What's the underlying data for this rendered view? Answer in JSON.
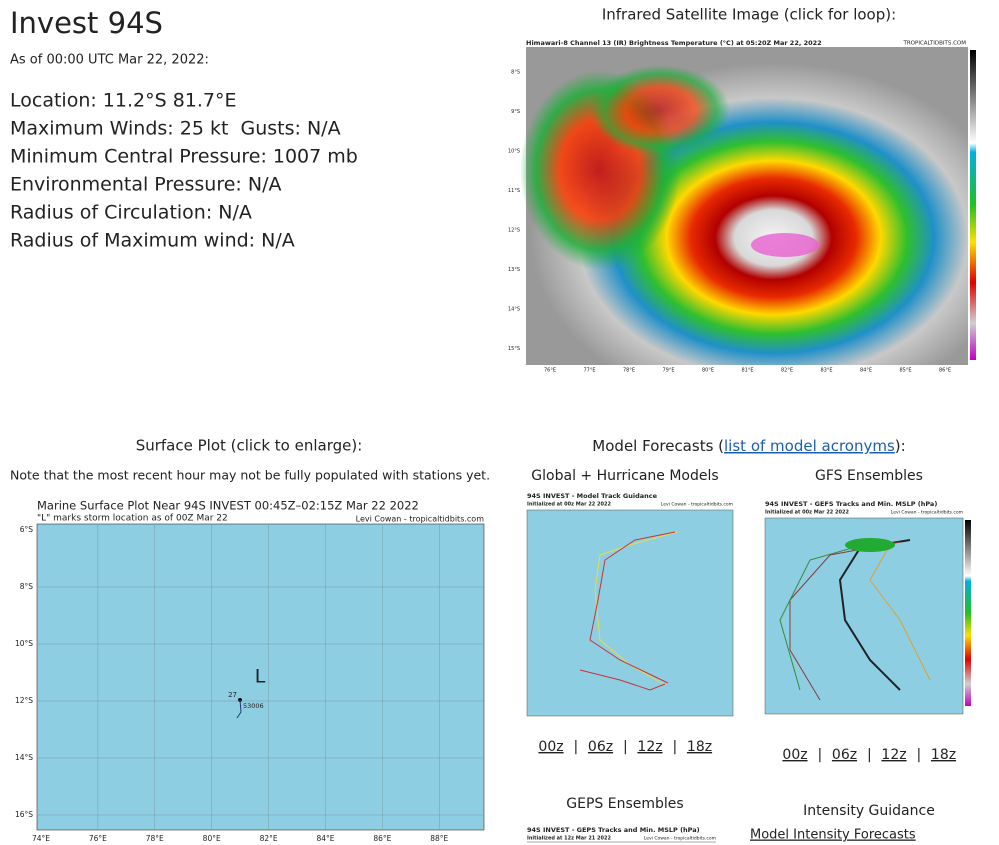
{
  "header": {
    "title": "Invest 94S",
    "as_of": "As of 00:00 UTC Mar 22, 2022:"
  },
  "storm_info": [
    "Location: 11.2°S 81.7°E",
    "Maximum Winds: 25 kt  Gusts: N/A",
    "Minimum Central Pressure: 1007 mb",
    "Environmental Pressure: N/A",
    "Radius of Circulation: N/A",
    "Radius of Maximum wind: N/A"
  ],
  "satellite": {
    "heading": "Infrared Satellite Image (click for loop):",
    "image_title": "Himawari-8 Channel 13 (IR) Brightness Temperature (°C) at 05:20Z Mar 22, 2022",
    "image_credit": "TROPICALTIDBITS.COM",
    "lat_labels": [
      "8°S",
      "9°S",
      "10°S",
      "11°S",
      "12°S",
      "13°S",
      "14°S",
      "15°S"
    ],
    "lon_labels": [
      "76°E",
      "77°E",
      "78°E",
      "79°E",
      "80°E",
      "81°E",
      "82°E",
      "83°E",
      "84°E",
      "85°E",
      "86°E"
    ]
  },
  "surface": {
    "heading": "Surface Plot (click to enlarge):",
    "note": "Note that the most recent hour may not be fully populated with stations yet.",
    "plot_title": "Marine Surface Plot Near 94S INVEST 00:45Z–02:15Z Mar 22 2022",
    "plot_subtitle": "\"L\" marks storm location as of 00Z Mar 22",
    "plot_credit": "Levi Cowan - tropicaltidbits.com",
    "lat_labels": [
      "6°S",
      "8°S",
      "10°S",
      "12°S",
      "14°S",
      "16°S"
    ],
    "lon_labels": [
      "74°E",
      "76°E",
      "78°E",
      "80°E",
      "82°E",
      "84°E",
      "86°E",
      "88°E"
    ],
    "storm_marker": "L",
    "station_value": "27",
    "station_id": "53006"
  },
  "models": {
    "heading_prefix": "Model Forecasts (",
    "heading_link": "list of model acronyms",
    "heading_suffix": "):",
    "global": {
      "heading": "Global + Hurricane Models",
      "image_title": "94S INVEST - Model Track Guidance",
      "image_init": "Initialized at 00z Mar 22 2022",
      "image_credit": "Levi Cowan - tropicaltidbits.com",
      "links": [
        "00z",
        "06z",
        "12z",
        "18z"
      ],
      "separator": "|"
    },
    "gfs": {
      "heading": "GFS Ensembles",
      "image_title": "94S INVEST - GEFS Tracks and Min. MSLP (hPa)",
      "image_init": "Initialized at 00z Mar 22 2022",
      "image_credit": "Levi Cowan - tropicaltidbits.com",
      "links": [
        "00z",
        "06z",
        "12z",
        "18z"
      ],
      "separator": "|"
    },
    "geps": {
      "heading": "GEPS Ensembles",
      "image_title": "94S INVEST - GEPS Tracks and Min. MSLP (hPa)",
      "image_init": "Initialized at 12z Mar 21 2022",
      "image_credit": "Levi Cowan - tropicaltidbits.com"
    },
    "intensity": {
      "heading": "Intensity Guidance",
      "link": "Model Intensity Forecasts"
    }
  }
}
